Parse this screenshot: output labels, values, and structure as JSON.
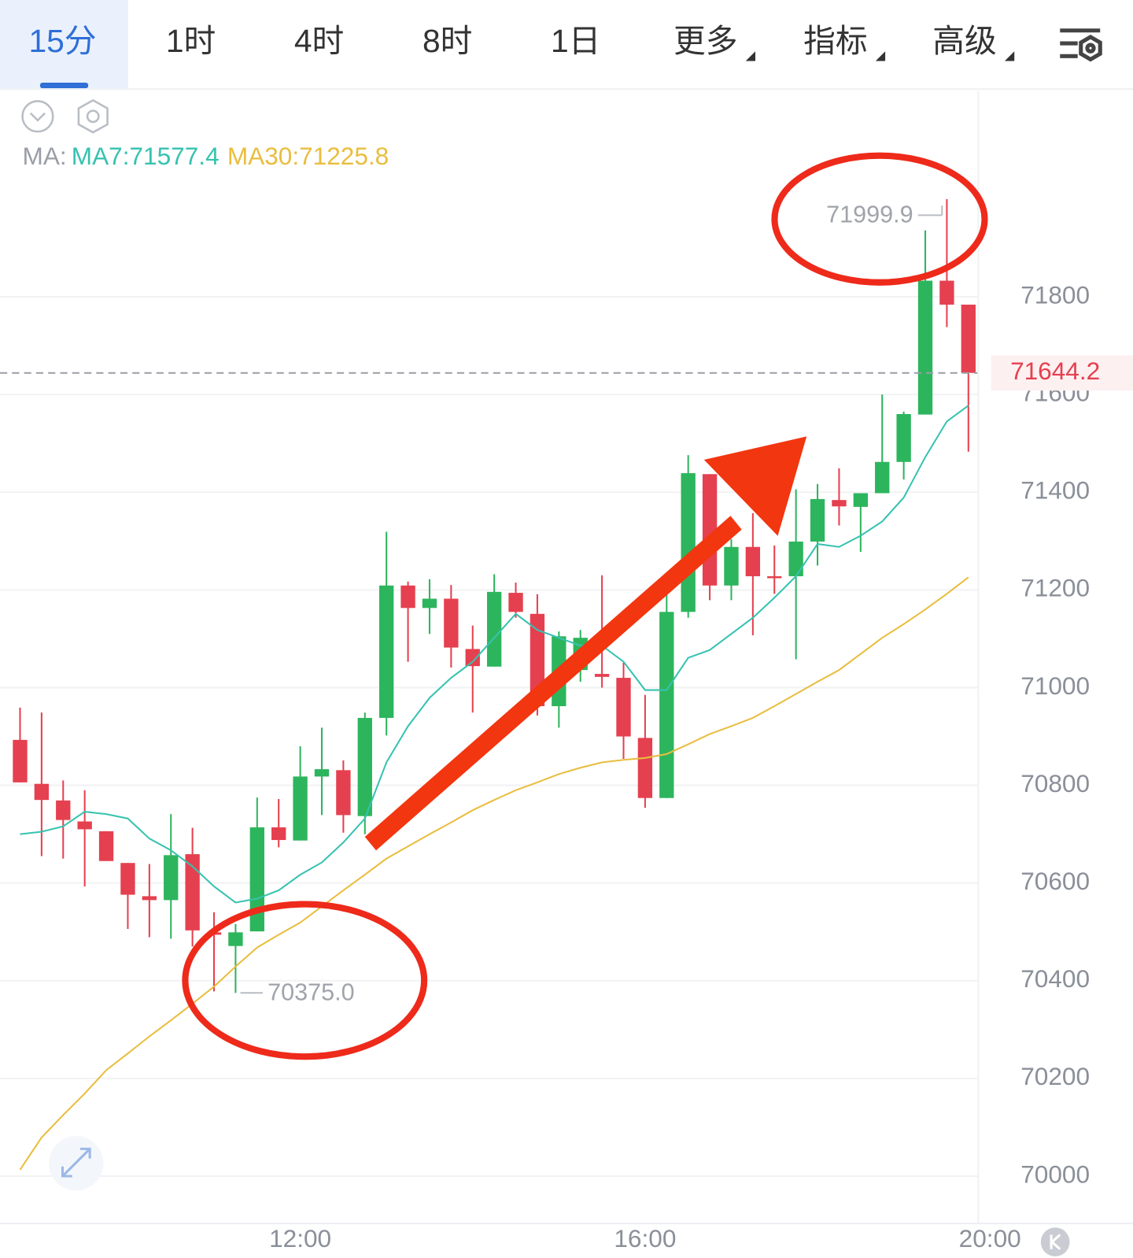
{
  "tabs": [
    "15分",
    "1时",
    "4时",
    "8时",
    "1日",
    "更多",
    "指标",
    "高级"
  ],
  "chart_data": {
    "type": "candlestick",
    "ma_prefix": "MA:",
    "categories": [
      null,
      null,
      null,
      null,
      null,
      null,
      null,
      null,
      null,
      null,
      null,
      null,
      null,
      "12:00",
      null,
      null,
      null,
      null,
      null,
      null,
      null,
      null,
      null,
      null,
      null,
      null,
      null,
      null,
      null,
      "16:00",
      null,
      null,
      null,
      null,
      null,
      null,
      null,
      null,
      null,
      null,
      null,
      null,
      null,
      null,
      null,
      "20:00"
    ],
    "open": [
      70893,
      70803,
      70769,
      70726,
      70706,
      70641,
      70573,
      70565,
      70659,
      70499,
      70471,
      70501,
      70714,
      70687,
      70818,
      70831,
      70737,
      70938,
      71209,
      71163,
      71182,
      71079,
      71043,
      71194,
      71151,
      70962,
      71036,
      71028,
      71020,
      70897,
      70774,
      71155,
      71437,
      71209,
      71288,
      71228,
      71228,
      71299,
      71384,
      71370,
      71398,
      71462,
      71559,
      71833,
      71784,
      null
    ],
    "high": [
      70959,
      70949,
      70810,
      70790,
      70706,
      70641,
      70639,
      70741,
      70713,
      70540,
      70516,
      70775,
      70772,
      70880,
      70918,
      70851,
      70949,
      71319,
      71217,
      71222,
      71210,
      71127,
      71232,
      71215,
      71191,
      71115,
      71118,
      71230,
      71051,
      70985,
      71204,
      71476,
      71437,
      71304,
      71357,
      71291,
      71406,
      71417,
      71449,
      71398,
      71600,
      71565,
      71936,
      71999.9,
      71784,
      null
    ],
    "low": [
      70806,
      70655,
      70650,
      70593,
      70645,
      70506,
      70489,
      70486,
      70470,
      70378,
      70375,
      70501,
      70673,
      70687,
      70739,
      70703,
      70700,
      70902,
      71053,
      71110,
      71041,
      70949,
      71043,
      71143,
      70943,
      70918,
      71012,
      71000,
      70854,
      70754,
      70774,
      71143,
      71179,
      71179,
      71107,
      71192,
      71058,
      71250,
      71332,
      71278,
      71398,
      71426,
      71559,
      71738,
      71483,
      null
    ],
    "close": [
      70806,
      70770,
      70729,
      70710,
      70645,
      70576,
      70565,
      70657,
      70503,
      70494,
      70499,
      70714,
      70688,
      70818,
      70833,
      70739,
      70938,
      71209,
      71163,
      71182,
      71082,
      71044,
      71196,
      71155,
      70962,
      71105,
      71102,
      71022,
      70900,
      70774,
      71155,
      71439,
      71209,
      71288,
      71228,
      71224,
      71299,
      71386,
      71371,
      71398,
      71462,
      71560,
      71833,
      71784,
      71644.2,
      null
    ],
    "up_color": "#2db55d",
    "down_color": "#e5404f",
    "series": [
      {
        "name": "MA7:71577.4",
        "color": "#36c2b0",
        "values": [
          70700,
          70705,
          70716,
          70746,
          70741,
          70732,
          70691,
          70667,
          70634,
          70593,
          70560,
          70568,
          70585,
          70617,
          70642,
          70683,
          70732,
          70847,
          70921,
          70979,
          71020,
          71053,
          71102,
          71151,
          71118,
          71102,
          71086,
          71086,
          71053,
          70995,
          70995,
          71061,
          71077,
          71110,
          71143,
          71184,
          71228,
          71294,
          71288,
          71311,
          71340,
          71389,
          71472,
          71545,
          71577.4,
          null
        ]
      },
      {
        "name": "MA30:71225.8",
        "color": "#e9bd3e",
        "values": [
          70013,
          70079,
          70125,
          70169,
          70217,
          70251,
          70286,
          70319,
          70353,
          70388,
          70429,
          70468,
          70494,
          70519,
          70552,
          70585,
          70617,
          70650,
          70675,
          70700,
          70724,
          70749,
          70770,
          70790,
          70806,
          70823,
          70836,
          70847,
          70852,
          70856,
          70864,
          70884,
          70905,
          70921,
          70938,
          70962,
          70987,
          71012,
          71036,
          71069,
          71102,
          71130,
          71160,
          71192,
          71225.8,
          null
        ]
      }
    ],
    "ylim": [
      69903,
      72222
    ],
    "yticks": [
      70000,
      70200,
      70400,
      70600,
      70800,
      71000,
      71200,
      71400,
      71600,
      71800
    ],
    "grid": true,
    "last_price": 71644.2,
    "annotations": [
      {
        "value": 71999.9,
        "label": "71999.9"
      },
      {
        "value": 70375,
        "label": "70375.0"
      }
    ]
  }
}
